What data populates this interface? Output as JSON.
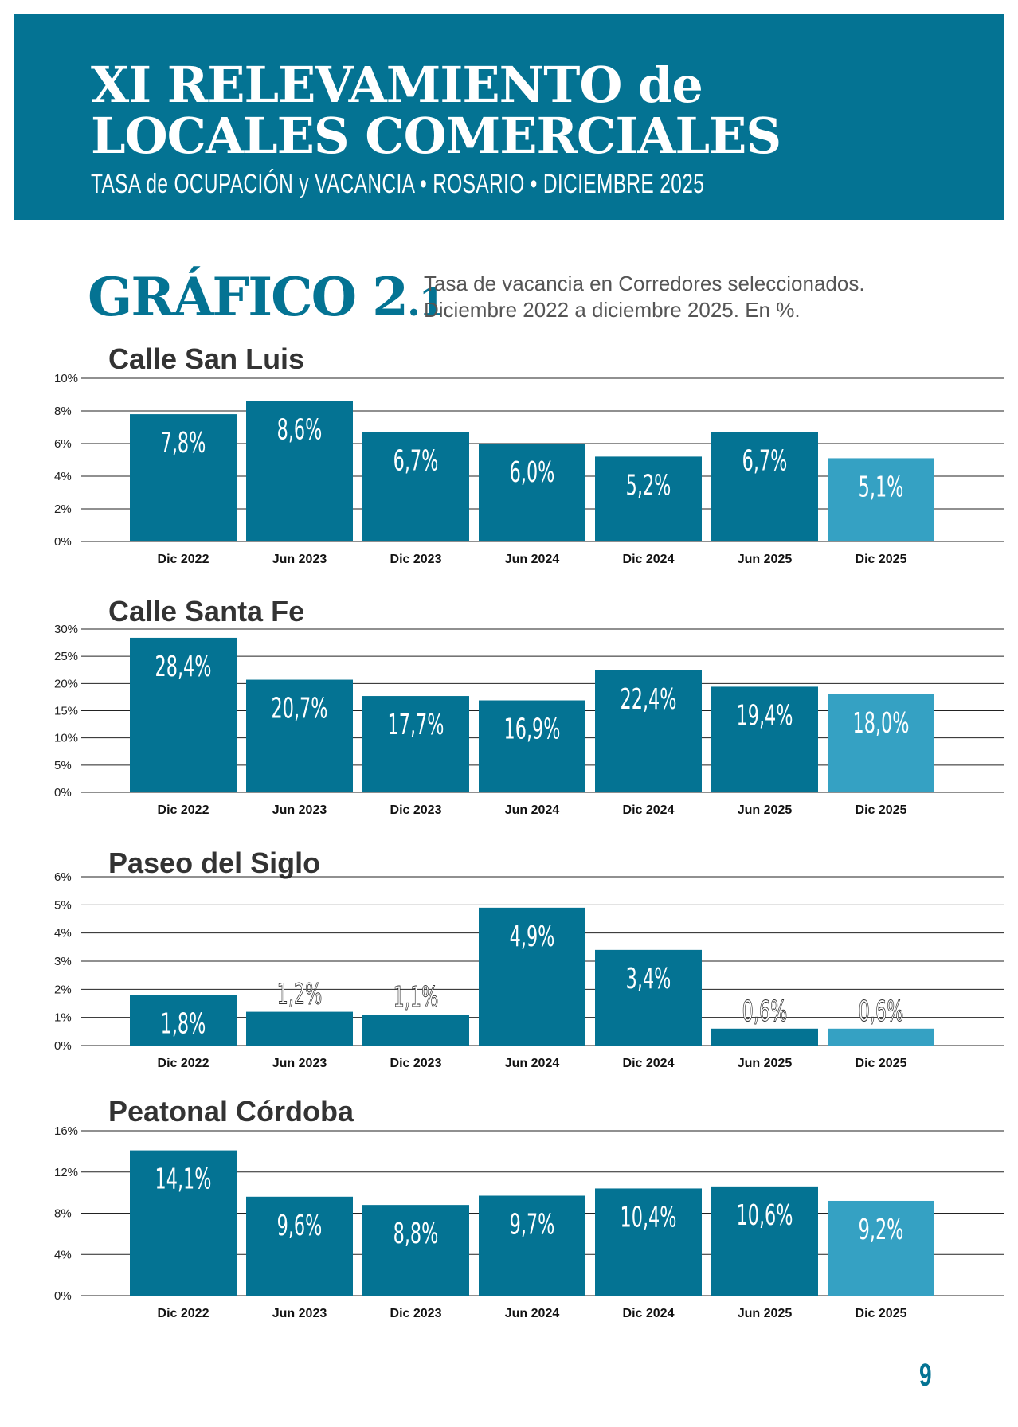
{
  "header": {
    "title_line1": "XI RELEVAMIENTO de",
    "title_line2": "LOCALES COMERCIALES",
    "subtitle": "TASA de OCUPACIÓN y VACANCIA  •  ROSARIO  •  DICIEMBRE 2025",
    "background_color": "#047393"
  },
  "figure": {
    "label": "GRÁFICO 2",
    "label_sub": ".1",
    "description_line1": "Tasa de vacancia en Corredores seleccionados.",
    "description_line2": "Diciembre 2022 a diciembre 2025. En %."
  },
  "colors": {
    "bar": "#047393",
    "highlight_bar": "#35a1c3",
    "grid": "#222222"
  },
  "chart_data": [
    {
      "type": "bar",
      "title": "Calle San Luis",
      "categories": [
        "Dic 2022",
        "Jun 2023",
        "Dic 2023",
        "Jun 2024",
        "Dic 2024",
        "Jun 2025",
        "Dic 2025"
      ],
      "values": [
        7.8,
        8.6,
        6.7,
        6.0,
        5.2,
        6.7,
        5.1
      ],
      "value_labels": [
        "7,8%",
        "8,6%",
        "6,7%",
        "6,0%",
        "5,2%",
        "6,7%",
        "5,1%"
      ],
      "ylim": [
        0,
        10
      ],
      "yticks": [
        0,
        2,
        4,
        6,
        8,
        10
      ],
      "ytick_labels": [
        "0%",
        "2%",
        "4%",
        "6%",
        "8%",
        "10%"
      ],
      "grid": true
    },
    {
      "type": "bar",
      "title": "Calle Santa Fe",
      "categories": [
        "Dic 2022",
        "Jun 2023",
        "Dic 2023",
        "Jun 2024",
        "Dic 2024",
        "Jun 2025",
        "Dic 2025"
      ],
      "values": [
        28.4,
        20.7,
        17.7,
        16.9,
        22.4,
        19.4,
        18.0
      ],
      "value_labels": [
        "28,4%",
        "20,7%",
        "17,7%",
        "16,9%",
        "22,4%",
        "19,4%",
        "18,0%"
      ],
      "ylim": [
        0,
        30
      ],
      "yticks": [
        0,
        5,
        10,
        15,
        20,
        25,
        30
      ],
      "ytick_labels": [
        "0%",
        "5%",
        "10%",
        "15%",
        "20%",
        "25%",
        "30%"
      ],
      "grid": true
    },
    {
      "type": "bar",
      "title": "Paseo del Siglo",
      "categories": [
        "Dic 2022",
        "Jun 2023",
        "Dic 2023",
        "Jun 2024",
        "Dic 2024",
        "Jun 2025",
        "Dic 2025"
      ],
      "values": [
        1.8,
        1.2,
        1.1,
        4.9,
        3.4,
        0.6,
        0.6
      ],
      "value_labels": [
        "1,8%",
        "1,2%",
        "1,1%",
        "4,9%",
        "3,4%",
        "0,6%",
        "0,6%"
      ],
      "ylim": [
        0,
        6
      ],
      "yticks": [
        0,
        1,
        2,
        3,
        4,
        5,
        6
      ],
      "ytick_labels": [
        "0%",
        "1%",
        "2%",
        "3%",
        "4%",
        "5%",
        "6%"
      ],
      "grid": true
    },
    {
      "type": "bar",
      "title": "Peatonal Córdoba",
      "categories": [
        "Dic 2022",
        "Jun 2023",
        "Dic 2023",
        "Jun 2024",
        "Dic 2024",
        "Jun 2025",
        "Dic 2025"
      ],
      "values": [
        14.1,
        9.6,
        8.8,
        9.7,
        10.4,
        10.6,
        9.2
      ],
      "value_labels": [
        "14,1%",
        "9,6%",
        "8,8%",
        "9,7%",
        "10,4%",
        "10,6%",
        "9,2%"
      ],
      "ylim": [
        0,
        16
      ],
      "yticks": [
        0,
        4,
        8,
        12,
        16
      ],
      "ytick_labels": [
        "0%",
        "4%",
        "8%",
        "12%",
        "16%"
      ],
      "grid": true
    }
  ],
  "page_number": "9"
}
